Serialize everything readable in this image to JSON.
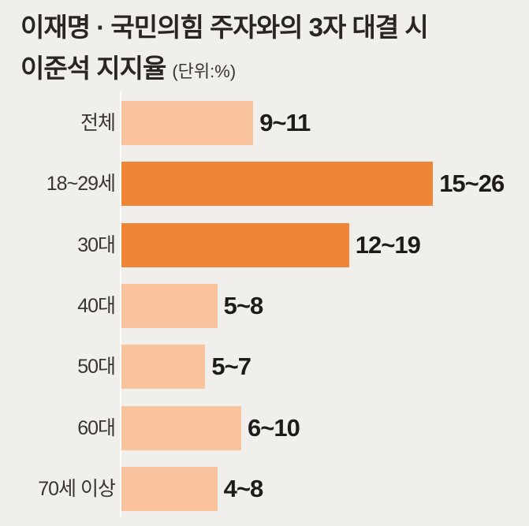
{
  "chart_data": {
    "type": "bar",
    "orientation": "horizontal",
    "title_line1": "이재명 · 국민의힘 주자와의 3자 대결 시",
    "title_line2": "이준석 지지율",
    "unit": "(단위:%)",
    "categories": [
      "전체",
      "18~29세",
      "30대",
      "40대",
      "50대",
      "60대",
      "70세 이상"
    ],
    "ranges": [
      [
        9,
        11
      ],
      [
        15,
        26
      ],
      [
        12,
        19
      ],
      [
        5,
        8
      ],
      [
        5,
        7
      ],
      [
        6,
        10
      ],
      [
        4,
        8
      ]
    ],
    "value_labels": [
      "9~11",
      "15~26",
      "12~19",
      "5~8",
      "5~7",
      "6~10",
      "4~8"
    ],
    "highlight": [
      false,
      true,
      true,
      false,
      false,
      false,
      false
    ],
    "colors": {
      "normal": "#f8c39d",
      "highlight": "#f08437",
      "background": "#f1efec"
    },
    "grid": false
  }
}
